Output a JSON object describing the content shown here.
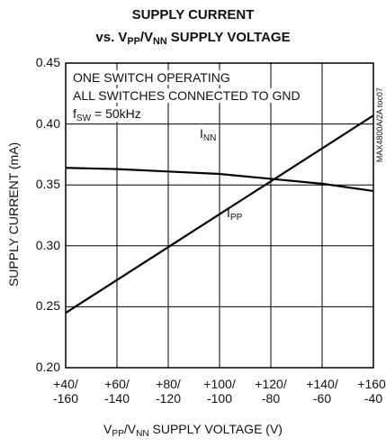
{
  "chart_data": {
    "type": "line",
    "title": [
      "SUPPLY CURRENT"
    ],
    "subtitle": [
      "vs. V",
      "PP",
      "/V",
      "NN",
      " SUPPLY VOLTAGE"
    ],
    "annotations": [
      [
        "ONE SWITCH OPERATING"
      ],
      [
        "ALL SWITCHES CONNECTED TO GND"
      ],
      [
        "f",
        "SW",
        " = 50kHz"
      ]
    ],
    "side_note": "MAX4800A/2A toc07",
    "xlabel": [
      "V",
      "PP",
      "/V",
      "NN",
      " SUPPLY VOLTAGE (V)"
    ],
    "ylabel": "SUPPLY CURRENT (mA)",
    "x": [
      40,
      60,
      80,
      100,
      120,
      140,
      160
    ],
    "xlim": [
      40,
      160
    ],
    "xticks": [
      {
        "value": 40,
        "label": "+40/\n-160"
      },
      {
        "value": 60,
        "label": "+60/\n-140"
      },
      {
        "value": 80,
        "label": "+80/\n-120"
      },
      {
        "value": 100,
        "label": "+100/\n-100"
      },
      {
        "value": 120,
        "label": "+120/\n-80"
      },
      {
        "value": 140,
        "label": "+140/\n-60"
      },
      {
        "value": 160,
        "label": "+160/\n-40"
      }
    ],
    "ylim": [
      0.2,
      0.45
    ],
    "yticks": [
      {
        "value": 0.2,
        "label": "0.20"
      },
      0.25,
      {
        "value": 0.3,
        "label": "0.30"
      },
      0.35,
      {
        "value": 0.4,
        "label": "0.40"
      },
      0.45
    ],
    "grid": true,
    "series": [
      {
        "name": [
          "I",
          "NN"
        ],
        "color": "#000000",
        "values": [
          0.364,
          0.363,
          0.361,
          0.359,
          0.355,
          0.351,
          0.345
        ]
      },
      {
        "name": [
          "I",
          "PP"
        ],
        "color": "#000000",
        "values": [
          0.245,
          0.272,
          0.299,
          0.326,
          0.353,
          0.38,
          0.407
        ]
      }
    ]
  }
}
